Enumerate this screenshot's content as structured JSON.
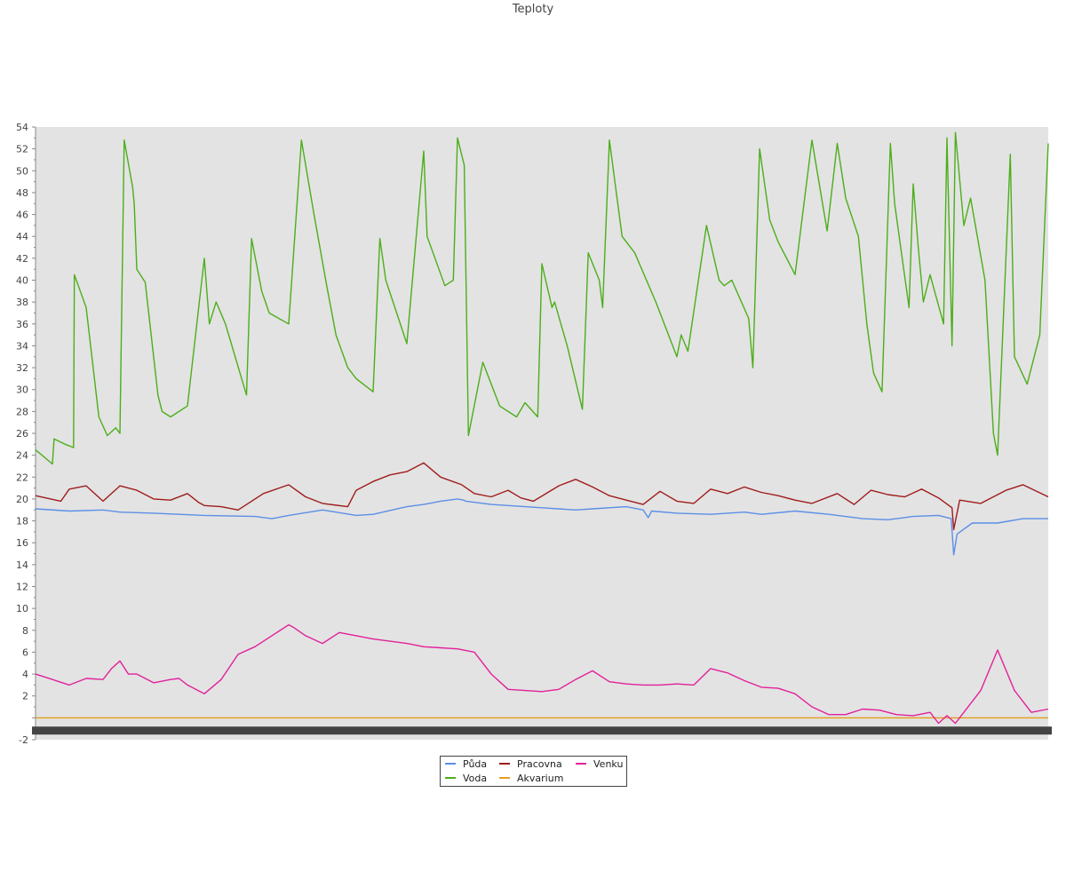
{
  "chart_data": {
    "type": "line",
    "title": "Teploty",
    "xlabel": "",
    "ylabel": "",
    "ylim": [
      -2,
      54
    ],
    "ytick_step": 2,
    "grid": false,
    "legend_position": "bottom-center",
    "background": "#e3e3e3",
    "x_range": [
      0,
      120
    ],
    "x_axis_note": "x tick labels overlap into a dark illegible band",
    "series": [
      {
        "name": "Půda",
        "color": "#5b8fe6",
        "x": [
          0,
          4,
          8,
          10,
          14,
          20,
          26,
          28,
          30,
          34,
          38,
          40,
          44,
          46,
          48,
          50,
          50.7,
          51,
          54,
          60,
          64,
          66,
          70,
          72,
          72.6,
          73,
          76,
          80,
          84,
          86,
          90,
          94,
          98,
          101,
          104,
          107,
          108.5,
          108.8,
          109.2,
          111,
          114,
          117,
          120
        ],
        "y": [
          19.1,
          18.9,
          19.0,
          18.8,
          18.7,
          18.5,
          18.4,
          18.2,
          18.5,
          19.0,
          18.5,
          18.6,
          19.3,
          19.5,
          19.8,
          20.0,
          19.9,
          19.8,
          19.5,
          19.2,
          19.0,
          19.1,
          19.3,
          19.0,
          18.3,
          18.9,
          18.7,
          18.6,
          18.8,
          18.6,
          18.9,
          18.6,
          18.2,
          18.1,
          18.4,
          18.5,
          18.2,
          14.9,
          16.8,
          17.8,
          17.8,
          18.2,
          18.2
        ]
      },
      {
        "name": "Pracovna",
        "color": "#a01c1c",
        "x": [
          0,
          3,
          4,
          6,
          8,
          10,
          12,
          14,
          16,
          18,
          19.3,
          20,
          22,
          24,
          27,
          30,
          32,
          34,
          37,
          38,
          40,
          42,
          44,
          46,
          48,
          50.5,
          52,
          54,
          56,
          57.5,
          59,
          62,
          64,
          66,
          68,
          70,
          72,
          74,
          76,
          78,
          80,
          82,
          84,
          86,
          88,
          90,
          92,
          95,
          97,
          99,
          101,
          103,
          105,
          107,
          108.6,
          108.8,
          109.5,
          112,
          115,
          117,
          120
        ],
        "y": [
          20.3,
          19.8,
          20.9,
          21.2,
          19.8,
          21.2,
          20.8,
          20.0,
          19.9,
          20.5,
          19.7,
          19.4,
          19.3,
          19.0,
          20.5,
          21.3,
          20.2,
          19.6,
          19.3,
          20.8,
          21.6,
          22.2,
          22.5,
          23.3,
          22.0,
          21.3,
          20.5,
          20.2,
          20.8,
          20.1,
          19.8,
          21.2,
          21.8,
          21.1,
          20.3,
          19.9,
          19.5,
          20.7,
          19.8,
          19.6,
          20.9,
          20.5,
          21.1,
          20.6,
          20.3,
          19.9,
          19.6,
          20.5,
          19.5,
          20.8,
          20.4,
          20.2,
          20.9,
          20.1,
          19.2,
          17.2,
          19.9,
          19.6,
          20.8,
          21.3,
          20.2
        ]
      },
      {
        "name": "Voda",
        "color": "#4cae1a",
        "x": [
          0,
          2,
          2.2,
          3.5,
          4.5,
          4.6,
          6,
          7.5,
          8.5,
          9.5,
          10,
          10.5,
          11.5,
          11.7,
          12,
          13,
          14.5,
          15,
          16,
          18,
          20,
          20.6,
          21.4,
          22.5,
          25,
          25.6,
          26.8,
          27.7,
          30,
          31.5,
          33,
          34.5,
          35.6,
          37,
          38,
          40,
          40.8,
          41.5,
          44,
          46,
          46.4,
          48.5,
          49.5,
          50,
          50.8,
          51.3,
          53,
          55,
          57,
          58,
          59.5,
          60,
          61.2,
          61.5,
          63,
          64.8,
          65.5,
          66.8,
          67.2,
          68,
          69.5,
          71,
          73.5,
          76,
          76.5,
          77.3,
          79.5,
          81,
          81.6,
          82.5,
          84.5,
          85,
          85.8,
          87,
          88,
          90,
          92,
          93.8,
          95,
          96,
          97.5,
          98.5,
          99.3,
          100.3,
          101.3,
          101.8,
          103.5,
          104,
          104.6,
          105.2,
          106,
          107.6,
          108,
          108.6,
          109,
          110,
          110.8,
          112.5,
          113.5,
          114,
          115.5,
          116,
          117.5,
          119,
          120
        ],
        "y": [
          24.5,
          23.2,
          25.5,
          25.0,
          24.7,
          40.5,
          37.5,
          27.5,
          25.8,
          26.5,
          26.0,
          52.8,
          48.5,
          47.0,
          41.0,
          39.8,
          29.5,
          28.0,
          27.5,
          28.5,
          42.0,
          36.0,
          38.0,
          36.0,
          29.5,
          43.8,
          39.0,
          37.0,
          36.0,
          52.8,
          46.0,
          39.5,
          35.0,
          32.0,
          31.0,
          29.8,
          43.8,
          40.0,
          34.2,
          51.8,
          44.0,
          39.5,
          40.0,
          53.0,
          50.5,
          25.8,
          32.5,
          28.5,
          27.5,
          28.8,
          27.5,
          41.5,
          37.5,
          38.0,
          34.0,
          28.2,
          42.5,
          40.0,
          37.5,
          52.8,
          44.0,
          42.5,
          38.0,
          33.0,
          35.0,
          33.5,
          45.0,
          40.0,
          39.5,
          40.0,
          36.5,
          32.0,
          52.0,
          45.5,
          43.5,
          40.5,
          52.8,
          44.5,
          52.5,
          47.5,
          44.0,
          36.0,
          31.5,
          29.8,
          52.5,
          47.0,
          37.5,
          48.8,
          43.0,
          38.0,
          40.5,
          36.0,
          53.0,
          34.0,
          53.5,
          45.0,
          47.5,
          40.0,
          26.0,
          24.0,
          51.5,
          33.0,
          30.5,
          35.0,
          52.5
        ]
      },
      {
        "name": "Akvarium",
        "color": "#e59f1e",
        "x": [
          0,
          120
        ],
        "y": [
          0,
          0
        ]
      },
      {
        "name": "Venku",
        "color": "#e2219a",
        "x": [
          0,
          2,
          4,
          6,
          8,
          9,
          10,
          11,
          12,
          14,
          16,
          17,
          18,
          20,
          22,
          24,
          26,
          28,
          30,
          30.5,
          32,
          34,
          36,
          38,
          40,
          42,
          44,
          46,
          48,
          50,
          52,
          54,
          56,
          58,
          60,
          62,
          64,
          66,
          68,
          70,
          72,
          74,
          76,
          78,
          80,
          82,
          84,
          86,
          88,
          90,
          92,
          94,
          96,
          98,
          100,
          102,
          104,
          106,
          107,
          108,
          109,
          110,
          112,
          114,
          116,
          118,
          120
        ],
        "y": [
          4.0,
          3.5,
          3.0,
          3.6,
          3.5,
          4.5,
          5.2,
          4.0,
          4.0,
          3.2,
          3.5,
          3.6,
          3.0,
          2.2,
          3.5,
          5.8,
          6.5,
          7.5,
          8.5,
          8.3,
          7.5,
          6.8,
          7.8,
          7.5,
          7.2,
          7.0,
          6.8,
          6.5,
          6.4,
          6.3,
          6.0,
          4.0,
          2.6,
          2.5,
          2.4,
          2.6,
          3.5,
          4.3,
          3.3,
          3.1,
          3.0,
          3.0,
          3.1,
          3.0,
          4.5,
          4.1,
          3.4,
          2.8,
          2.7,
          2.2,
          1.0,
          0.3,
          0.3,
          0.8,
          0.7,
          0.3,
          0.2,
          0.5,
          -0.5,
          0.2,
          -0.5,
          0.5,
          2.5,
          6.2,
          2.5,
          0.5,
          0.8
        ]
      }
    ]
  }
}
